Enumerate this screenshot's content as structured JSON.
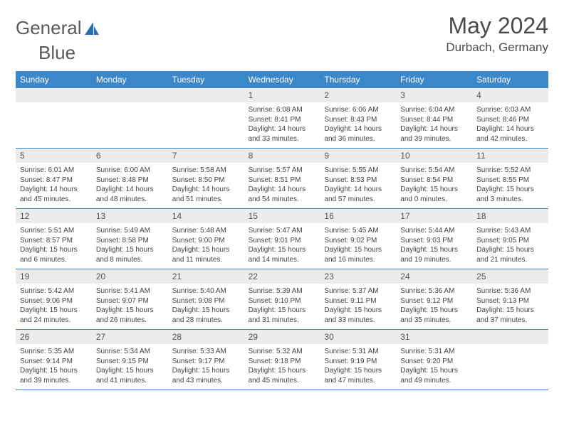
{
  "brand": {
    "part1": "General",
    "part2": "Blue"
  },
  "title": "May 2024",
  "location": "Durbach, Germany",
  "header_bg": "#3b87c8",
  "weekdays": [
    "Sunday",
    "Monday",
    "Tuesday",
    "Wednesday",
    "Thursday",
    "Friday",
    "Saturday"
  ],
  "weeks": [
    [
      null,
      null,
      null,
      {
        "n": "1",
        "sr": "6:08 AM",
        "ss": "8:41 PM",
        "dl": "14 hours and 33 minutes."
      },
      {
        "n": "2",
        "sr": "6:06 AM",
        "ss": "8:43 PM",
        "dl": "14 hours and 36 minutes."
      },
      {
        "n": "3",
        "sr": "6:04 AM",
        "ss": "8:44 PM",
        "dl": "14 hours and 39 minutes."
      },
      {
        "n": "4",
        "sr": "6:03 AM",
        "ss": "8:46 PM",
        "dl": "14 hours and 42 minutes."
      }
    ],
    [
      {
        "n": "5",
        "sr": "6:01 AM",
        "ss": "8:47 PM",
        "dl": "14 hours and 45 minutes."
      },
      {
        "n": "6",
        "sr": "6:00 AM",
        "ss": "8:48 PM",
        "dl": "14 hours and 48 minutes."
      },
      {
        "n": "7",
        "sr": "5:58 AM",
        "ss": "8:50 PM",
        "dl": "14 hours and 51 minutes."
      },
      {
        "n": "8",
        "sr": "5:57 AM",
        "ss": "8:51 PM",
        "dl": "14 hours and 54 minutes."
      },
      {
        "n": "9",
        "sr": "5:55 AM",
        "ss": "8:53 PM",
        "dl": "14 hours and 57 minutes."
      },
      {
        "n": "10",
        "sr": "5:54 AM",
        "ss": "8:54 PM",
        "dl": "15 hours and 0 minutes."
      },
      {
        "n": "11",
        "sr": "5:52 AM",
        "ss": "8:55 PM",
        "dl": "15 hours and 3 minutes."
      }
    ],
    [
      {
        "n": "12",
        "sr": "5:51 AM",
        "ss": "8:57 PM",
        "dl": "15 hours and 6 minutes."
      },
      {
        "n": "13",
        "sr": "5:49 AM",
        "ss": "8:58 PM",
        "dl": "15 hours and 8 minutes."
      },
      {
        "n": "14",
        "sr": "5:48 AM",
        "ss": "9:00 PM",
        "dl": "15 hours and 11 minutes."
      },
      {
        "n": "15",
        "sr": "5:47 AM",
        "ss": "9:01 PM",
        "dl": "15 hours and 14 minutes."
      },
      {
        "n": "16",
        "sr": "5:45 AM",
        "ss": "9:02 PM",
        "dl": "15 hours and 16 minutes."
      },
      {
        "n": "17",
        "sr": "5:44 AM",
        "ss": "9:03 PM",
        "dl": "15 hours and 19 minutes."
      },
      {
        "n": "18",
        "sr": "5:43 AM",
        "ss": "9:05 PM",
        "dl": "15 hours and 21 minutes."
      }
    ],
    [
      {
        "n": "19",
        "sr": "5:42 AM",
        "ss": "9:06 PM",
        "dl": "15 hours and 24 minutes."
      },
      {
        "n": "20",
        "sr": "5:41 AM",
        "ss": "9:07 PM",
        "dl": "15 hours and 26 minutes."
      },
      {
        "n": "21",
        "sr": "5:40 AM",
        "ss": "9:08 PM",
        "dl": "15 hours and 28 minutes."
      },
      {
        "n": "22",
        "sr": "5:39 AM",
        "ss": "9:10 PM",
        "dl": "15 hours and 31 minutes."
      },
      {
        "n": "23",
        "sr": "5:37 AM",
        "ss": "9:11 PM",
        "dl": "15 hours and 33 minutes."
      },
      {
        "n": "24",
        "sr": "5:36 AM",
        "ss": "9:12 PM",
        "dl": "15 hours and 35 minutes."
      },
      {
        "n": "25",
        "sr": "5:36 AM",
        "ss": "9:13 PM",
        "dl": "15 hours and 37 minutes."
      }
    ],
    [
      {
        "n": "26",
        "sr": "5:35 AM",
        "ss": "9:14 PM",
        "dl": "15 hours and 39 minutes."
      },
      {
        "n": "27",
        "sr": "5:34 AM",
        "ss": "9:15 PM",
        "dl": "15 hours and 41 minutes."
      },
      {
        "n": "28",
        "sr": "5:33 AM",
        "ss": "9:17 PM",
        "dl": "15 hours and 43 minutes."
      },
      {
        "n": "29",
        "sr": "5:32 AM",
        "ss": "9:18 PM",
        "dl": "15 hours and 45 minutes."
      },
      {
        "n": "30",
        "sr": "5:31 AM",
        "ss": "9:19 PM",
        "dl": "15 hours and 47 minutes."
      },
      {
        "n": "31",
        "sr": "5:31 AM",
        "ss": "9:20 PM",
        "dl": "15 hours and 49 minutes."
      },
      null
    ]
  ],
  "labels": {
    "sunrise": "Sunrise:",
    "sunset": "Sunset:",
    "daylight": "Daylight:"
  }
}
